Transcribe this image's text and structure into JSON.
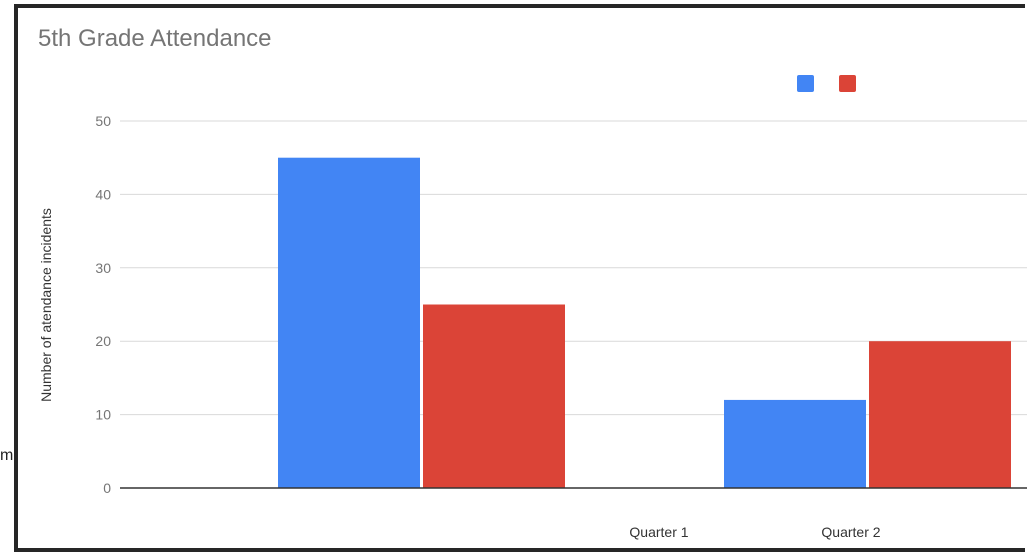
{
  "stray_text": "m",
  "chart_data": {
    "type": "bar",
    "title": "5th Grade Attendance",
    "xlabel": "",
    "ylabel": "Number of atendance incidents",
    "categories": [
      "Quarter 1",
      "Quarter 2"
    ],
    "series": [
      {
        "color": "#4285f4",
        "values": [
          45,
          12
        ]
      },
      {
        "color": "#db4437",
        "values": [
          25,
          20
        ]
      }
    ],
    "ylim": [
      0,
      50
    ],
    "yticks": [
      0,
      10,
      20,
      30,
      40,
      50
    ],
    "grid": true,
    "legend": "top-right"
  }
}
